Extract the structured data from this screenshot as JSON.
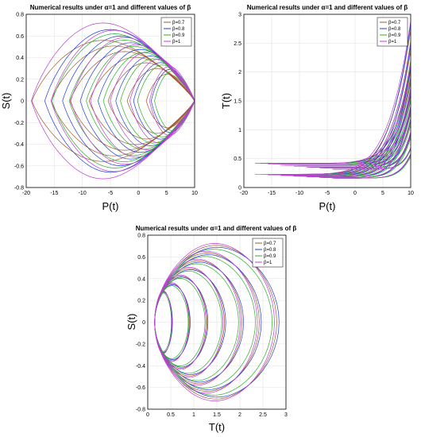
{
  "chart_data": [
    {
      "type": "line",
      "title": "Numerical results under α=1 and different values of β",
      "xlabel": "P(t)",
      "ylabel": "S(t)",
      "xlim": [
        -20,
        10
      ],
      "ylim": [
        -0.8,
        0.8
      ],
      "xticks": [
        -20,
        -15,
        -10,
        -5,
        0,
        5,
        10
      ],
      "yticks": [
        -0.8,
        -0.6,
        -0.4,
        -0.2,
        0,
        0.2,
        0.4,
        0.6,
        0.8
      ],
      "grid": true,
      "legend_position": "top-right",
      "series": [
        {
          "name": "β=0.7",
          "color": "#a05a2c",
          "tip_x": -19,
          "amp": 0.56
        },
        {
          "name": "β=0.8",
          "color": "#1f3ce0",
          "tip_x": -17,
          "amp": 0.66
        },
        {
          "name": "β=0.9",
          "color": "#28b028",
          "tip_x": -16,
          "amp": 0.62
        },
        {
          "name": "β=1",
          "color": "#c03cd8",
          "tip_x": -20,
          "amp": 0.72
        }
      ]
    },
    {
      "type": "line",
      "title": "Numerical results under α=1 and different values of β",
      "xlabel": "P(t)",
      "ylabel": "T(t)",
      "xlim": [
        -20,
        10
      ],
      "ylim": [
        0,
        3
      ],
      "xticks": [
        -20,
        -15,
        -10,
        -5,
        0,
        5,
        10
      ],
      "yticks": [
        0,
        0.5,
        1,
        1.5,
        2,
        2.5,
        3
      ],
      "grid": true,
      "legend_position": "top-right",
      "series": [
        {
          "name": "β=0.7",
          "color": "#a05a2c",
          "min_x": -17,
          "peak_y": 2.7
        },
        {
          "name": "β=0.8",
          "color": "#1f3ce0",
          "min_x": -16,
          "peak_y": 2.8
        },
        {
          "name": "β=0.9",
          "color": "#28b028",
          "min_x": -15,
          "peak_y": 2.5
        },
        {
          "name": "β=1",
          "color": "#c03cd8",
          "min_x": -18,
          "peak_y": 2.85
        }
      ]
    },
    {
      "type": "line",
      "title": "Numerical results under α=1 and different values of β",
      "xlabel": "T(t)",
      "ylabel": "S(t)",
      "xlim": [
        0,
        3
      ],
      "ylim": [
        -0.8,
        0.8
      ],
      "xticks": [
        0,
        0.5,
        1,
        1.5,
        2,
        2.5,
        3
      ],
      "yticks": [
        -0.8,
        -0.6,
        -0.4,
        -0.2,
        0,
        0.2,
        0.4,
        0.6,
        0.8
      ],
      "grid": true,
      "legend_position": "top-right",
      "series": [
        {
          "name": "β=0.7",
          "color": "#a05a2c",
          "max_x": 2.8,
          "amp": 0.8
        },
        {
          "name": "β=0.8",
          "color": "#1f3ce0",
          "max_x": 2.85,
          "amp": 0.78
        },
        {
          "name": "β=0.9",
          "color": "#28b028",
          "max_x": 2.7,
          "amp": 0.76
        },
        {
          "name": "β=1",
          "color": "#c03cd8",
          "max_x": 2.75,
          "amp": 0.82
        }
      ]
    }
  ]
}
